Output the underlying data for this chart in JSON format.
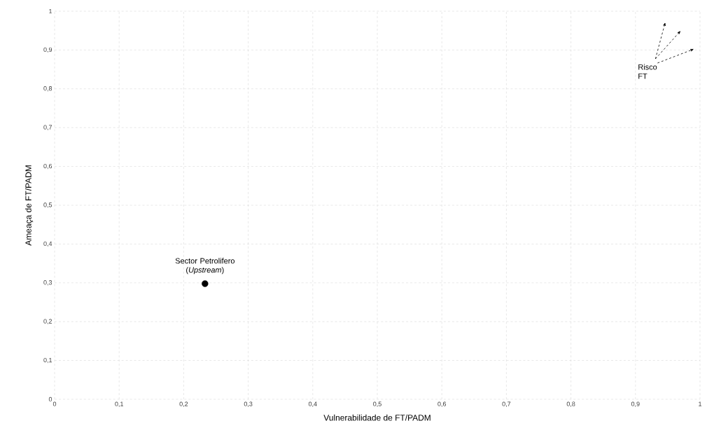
{
  "chart_data": {
    "type": "scatter",
    "xlabel": "Vulnerabilidade de FT/PADM",
    "ylabel": "Ameaça de FT/PADM",
    "x": [
      0.233
    ],
    "values": [
      0.298
    ],
    "color": "#000000",
    "marker": "circle",
    "xlim": [
      0,
      1
    ],
    "ylim": [
      0,
      1
    ],
    "xticks": [
      0,
      {
        "value": 0.1,
        "label": "0,1"
      },
      {
        "value": 0.2,
        "label": "0,2"
      },
      {
        "value": 0.3,
        "label": "0,3"
      },
      {
        "value": 0.4,
        "label": "0,4"
      },
      {
        "value": 0.5,
        "label": "0,5"
      },
      {
        "value": 0.6,
        "label": "0,6"
      },
      {
        "value": 0.7,
        "label": "0,7"
      },
      {
        "value": 0.8,
        "label": "0,8"
      },
      {
        "value": 0.9,
        "label": "0,9"
      },
      1
    ],
    "yticks": [
      0,
      {
        "value": 0.1,
        "label": "0,1"
      },
      {
        "value": 0.2,
        "label": "0,2"
      },
      {
        "value": 0.3,
        "label": "0,3"
      },
      {
        "value": 0.4,
        "label": "0,4"
      },
      {
        "value": 0.5,
        "label": "0,5"
      },
      {
        "value": 0.6,
        "label": "0,6"
      },
      {
        "value": 0.7,
        "label": "0,7"
      },
      {
        "value": 0.8,
        "label": "0,8"
      },
      {
        "value": 0.9,
        "label": "0,9"
      },
      1
    ],
    "grid": true,
    "annotations": [
      {
        "text": "Sector Petrolifero (*Upstream*)",
        "x": 0.233,
        "y": 0.298
      },
      "Risco FT"
    ]
  }
}
